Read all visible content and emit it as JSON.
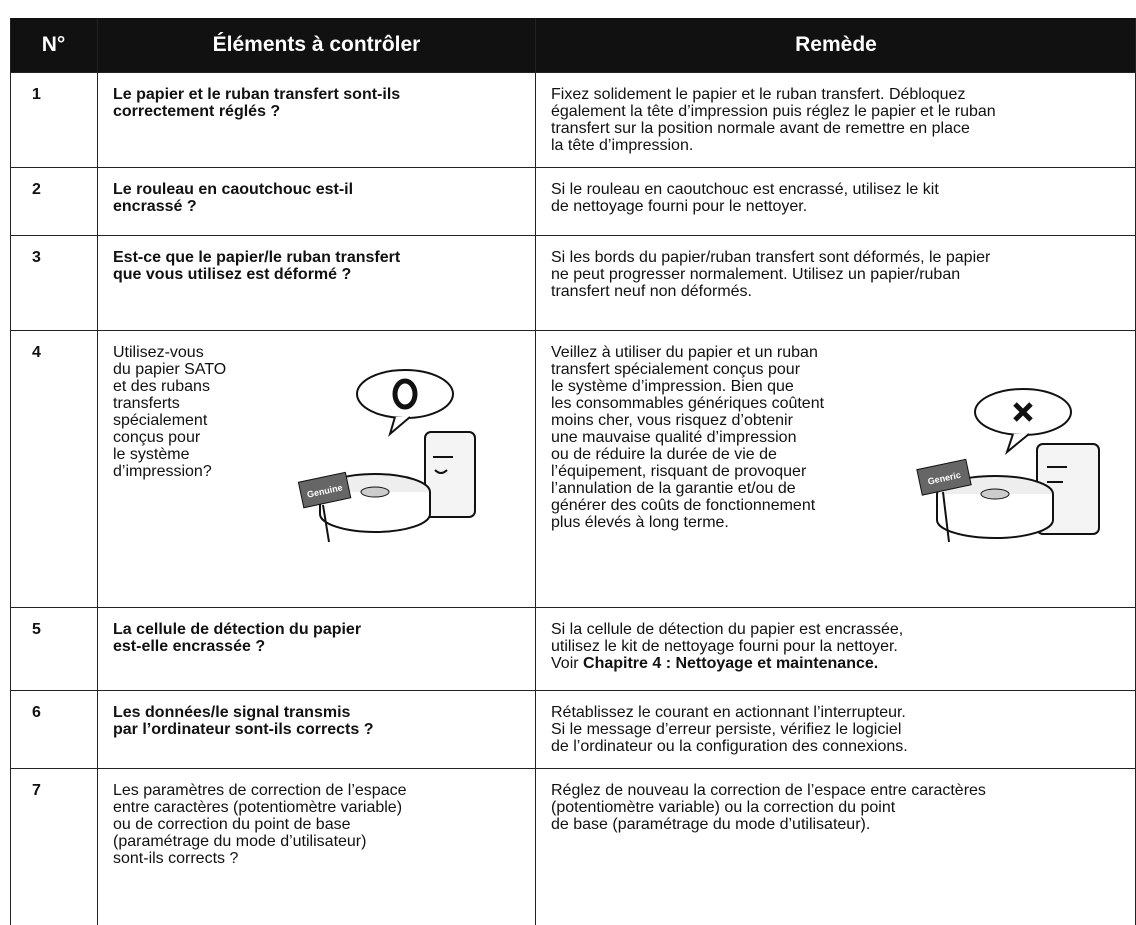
{
  "header": {
    "number": "N°",
    "items": "Éléments à contrôler",
    "remedy": "Remède"
  },
  "rows": [
    {
      "number": "1",
      "item": [
        "Le papier et le ruban transfert sont-ils",
        "correctement réglés ?"
      ],
      "item_bold": true,
      "remedy": [
        "Fixez solidement le papier et le ruban transfert. Débloquez",
        "également la tête d’impression puis réglez le papier et le ruban",
        "transfert sur la position normale avant de remettre en place",
        "la tête d’impression."
      ]
    },
    {
      "number": "2",
      "item": [
        "Le rouleau en caoutchouc est-il",
        "encrassé ?"
      ],
      "item_bold": true,
      "remedy": [
        "Si le rouleau en caoutchouc est encrassé, utilisez le kit",
        "de nettoyage fourni pour le nettoyer."
      ]
    },
    {
      "number": "3",
      "item": [
        "Est-ce que le papier/le ruban transfert",
        "que vous utilisez est déformé ?"
      ],
      "item_bold": true,
      "remedy": [
        "Si les bords du papier/ruban transfert sont déformés, le papier",
        "ne peut progresser normalement. Utilisez un papier/ruban",
        "transfert neuf non déformés."
      ]
    },
    {
      "number": "4",
      "item": [
        "Utilisez-vous",
        "du papier SATO",
        "et des rubans",
        "transferts",
        "spécialement",
        "conçus pour",
        "le système",
        "d’impression?"
      ],
      "item_bold": false,
      "item_sign": "Genuine",
      "remedy": [
        "Veillez à utiliser du papier et un ruban",
        "transfert spécialement conçus pour",
        "le système d’impression. Bien que",
        "les consommables génériques coûtent",
        "moins cher, vous risquez d’obtenir",
        "une mauvaise qualité d’impression",
        "ou de réduire la durée de vie de",
        "l’équipement, risquant de provoquer",
        "l’annulation de la garantie et/ou de",
        "générer des coûts de fonctionnement",
        "plus élevés à long terme."
      ],
      "remedy_sign": "Generic"
    },
    {
      "number": "5",
      "item": [
        "La cellule de détection du papier",
        "est-elle encrassée ?"
      ],
      "item_bold": true,
      "remedy": [
        "Si la cellule de détection du papier est encrassée,",
        "utilisez le kit de nettoyage fourni pour la nettoyer.",
        "Voir "
      ],
      "remedy_reference": "Chapitre 4 : Nettoyage et maintenance."
    },
    {
      "number": "6",
      "item": [
        "Les données/le signal transmis",
        "par l’ordinateur sont-ils corrects ?"
      ],
      "item_bold": true,
      "remedy": [
        "Rétablissez le courant en actionnant l’interrupteur.",
        "Si le message d’erreur persiste, vérifiez le logiciel",
        "de l’ordinateur ou la configuration des connexions."
      ]
    },
    {
      "number": "7",
      "item": [
        "Les paramètres de correction de l’espace",
        "entre caractères (potentiomètre variable)",
        "ou de correction du point de base",
        "(paramétrage du mode d’utilisateur)",
        "sont-ils corrects ?"
      ],
      "item_bold": false,
      "remedy": [
        "Réglez de nouveau la correction de l’espace entre caractères",
        "(potentiomètre variable) ou la correction du point",
        "de base (paramétrage du mode d’utilisateur)."
      ]
    }
  ]
}
